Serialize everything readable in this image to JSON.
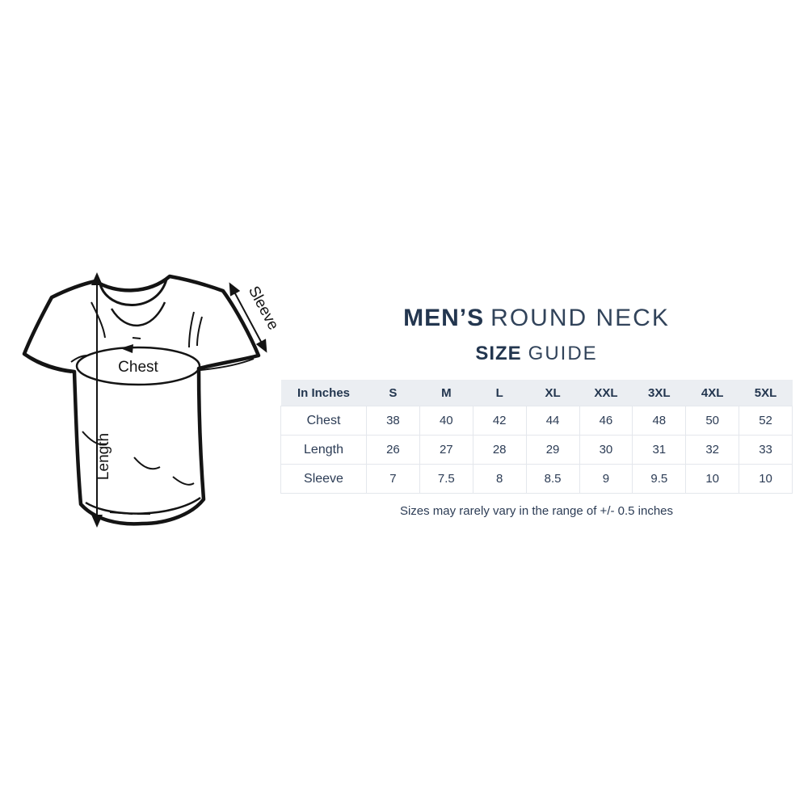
{
  "header": {
    "title_bold": "MEN’S",
    "title_light": "ROUND NECK",
    "subtitle_bold": "SIZE",
    "subtitle_light": "GUIDE"
  },
  "diagram": {
    "labels": {
      "chest": "Chest",
      "length": "Length",
      "sleeve": "Sleeve"
    }
  },
  "size_table": {
    "unit_header": "In Inches",
    "columns": [
      "S",
      "M",
      "L",
      "XL",
      "XXL",
      "3XL",
      "4XL",
      "5XL"
    ],
    "rows": [
      {
        "label": "Chest",
        "values": [
          "38",
          "40",
          "42",
          "44",
          "46",
          "48",
          "50",
          "52"
        ]
      },
      {
        "label": "Length",
        "values": [
          "26",
          "27",
          "28",
          "29",
          "30",
          "31",
          "32",
          "33"
        ]
      },
      {
        "label": "Sleeve",
        "values": [
          "7",
          "7.5",
          "8",
          "8.5",
          "9",
          "9.5",
          "10",
          "10"
        ]
      }
    ]
  },
  "note": "Sizes may rarely vary in the range of +/- 0.5 inches",
  "colors": {
    "navy": "#23364f",
    "table_header_bg": "#ebeef2",
    "table_border": "#e4e7ec"
  }
}
